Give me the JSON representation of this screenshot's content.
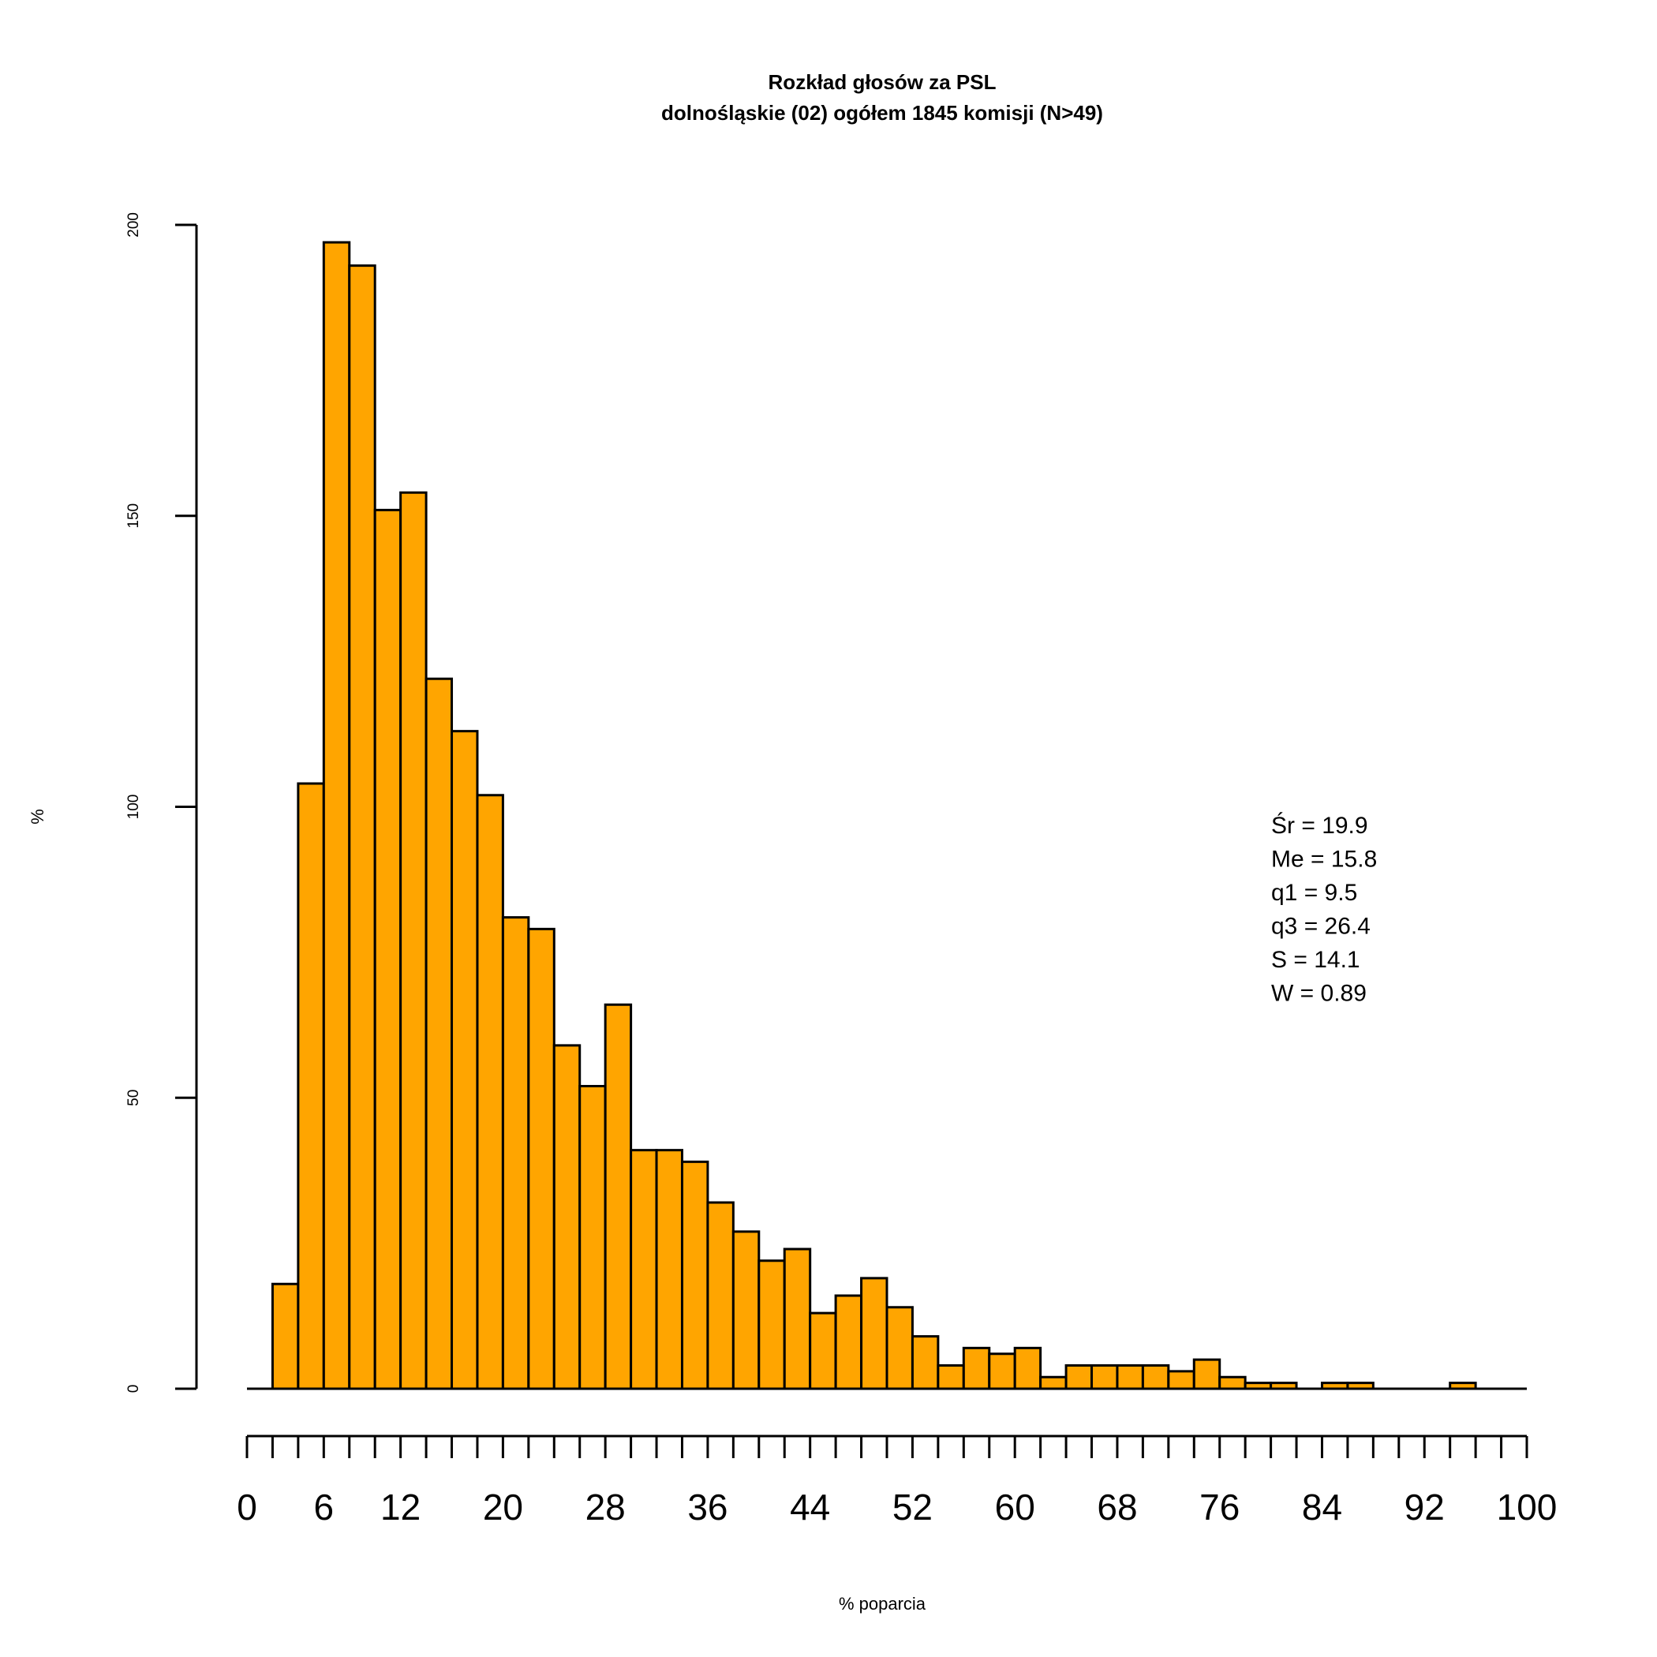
{
  "chart_data": {
    "type": "bar",
    "title": "Rozkład głosów za PSL",
    "subtitle": "dolnośląskie (02) ogółem 1845 komisji (N>49)",
    "xlabel": "% poparcia",
    "ylabel": "%",
    "bin_width": 2,
    "bin_start": 0,
    "xlim": [
      0,
      100
    ],
    "ylim": [
      0,
      200
    ],
    "y_ticks": [
      "0",
      "50",
      "100",
      "150",
      "200"
    ],
    "x_ticks": [
      "0",
      "6",
      "12",
      "20",
      "28",
      "36",
      "44",
      "52",
      "60",
      "68",
      "76",
      "84",
      "92",
      "100"
    ],
    "values": [
      0,
      18,
      104,
      197,
      193,
      151,
      154,
      122,
      113,
      102,
      81,
      79,
      59,
      52,
      66,
      41,
      41,
      39,
      32,
      27,
      22,
      24,
      13,
      16,
      19,
      14,
      9,
      4,
      7,
      6,
      7,
      2,
      4,
      4,
      4,
      4,
      3,
      5,
      2,
      1,
      1,
      0,
      1,
      1,
      0,
      0,
      0,
      1,
      0,
      0
    ],
    "stats": [
      "Śr = 19.9",
      "Me = 15.8",
      "q1 = 9.5",
      "q3 = 26.4",
      "S = 14.1",
      "W = 0.89"
    ],
    "colors": {
      "bar_fill": "#FFA500",
      "bar_stroke": "#000000"
    }
  }
}
